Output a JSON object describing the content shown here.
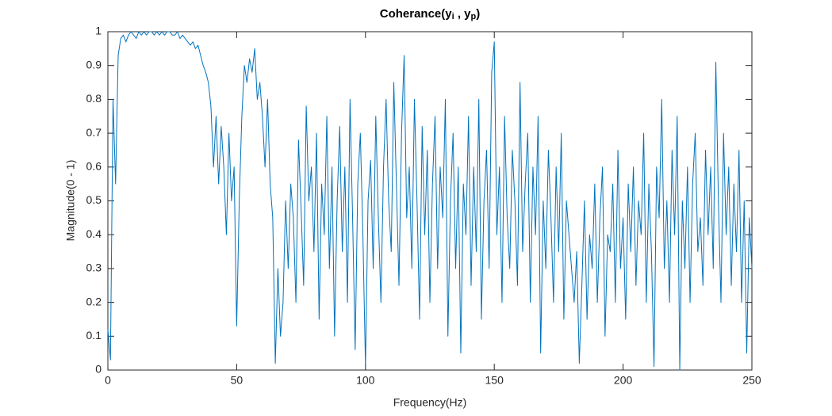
{
  "chart_data": {
    "type": "line",
    "title": [
      {
        "text": "Coherance(y"
      },
      {
        "text": "i",
        "sub": true
      },
      {
        "text": " , y"
      },
      {
        "text": "p",
        "sub": true
      },
      {
        "text": ")"
      }
    ],
    "x_label": "Frequency(Hz)",
    "y_label": "Magnitude(0 - 1)",
    "color": "#0072bd",
    "box": true,
    "xlim": [
      0,
      250
    ],
    "xticks": [
      0,
      50,
      100,
      150,
      200,
      250
    ],
    "ylim": [
      0,
      1
    ],
    "yticks": [
      0,
      0.1,
      0.2,
      0.3,
      0.4,
      0.5,
      0.6,
      0.7,
      0.8,
      0.9,
      1
    ],
    "x": [
      0,
      1,
      2,
      3,
      4,
      5,
      6,
      7,
      8,
      9,
      10,
      11,
      12,
      13,
      14,
      15,
      16,
      17,
      18,
      19,
      20,
      21,
      22,
      23,
      24,
      25,
      26,
      27,
      28,
      29,
      30,
      31,
      32,
      33,
      34,
      35,
      36,
      37,
      38,
      39,
      40,
      41,
      42,
      43,
      44,
      45,
      46,
      47,
      48,
      49,
      50,
      51,
      52,
      53,
      54,
      55,
      56,
      57,
      58,
      59,
      60,
      61,
      62,
      63,
      64,
      65,
      66,
      67,
      68,
      69,
      70,
      71,
      72,
      73,
      74,
      75,
      76,
      77,
      78,
      79,
      80,
      81,
      82,
      83,
      84,
      85,
      86,
      87,
      88,
      89,
      90,
      91,
      92,
      93,
      94,
      95,
      96,
      97,
      98,
      99,
      100,
      101,
      102,
      103,
      104,
      105,
      106,
      107,
      108,
      109,
      110,
      111,
      112,
      113,
      114,
      115,
      116,
      117,
      118,
      119,
      120,
      121,
      122,
      123,
      124,
      125,
      126,
      127,
      128,
      129,
      130,
      131,
      132,
      133,
      134,
      135,
      136,
      137,
      138,
      139,
      140,
      141,
      142,
      143,
      144,
      145,
      146,
      147,
      148,
      149,
      150,
      151,
      152,
      153,
      154,
      155,
      156,
      157,
      158,
      159,
      160,
      161,
      162,
      163,
      164,
      165,
      166,
      167,
      168,
      169,
      170,
      171,
      172,
      173,
      174,
      175,
      176,
      177,
      178,
      179,
      180,
      181,
      182,
      183,
      184,
      185,
      186,
      187,
      188,
      189,
      190,
      191,
      192,
      193,
      194,
      195,
      196,
      197,
      198,
      199,
      200,
      201,
      202,
      203,
      204,
      205,
      206,
      207,
      208,
      209,
      210,
      211,
      212,
      213,
      214,
      215,
      216,
      217,
      218,
      219,
      220,
      221,
      222,
      223,
      224,
      225,
      226,
      227,
      228,
      229,
      230,
      231,
      232,
      233,
      234,
      235,
      236,
      237,
      238,
      239,
      240,
      241,
      242,
      243,
      244,
      245,
      246,
      247,
      248,
      249,
      250
    ],
    "values": [
      0.12,
      0.03,
      0.8,
      0.55,
      0.93,
      0.98,
      0.99,
      0.97,
      0.99,
      1.0,
      0.99,
      0.98,
      1.0,
      0.99,
      1.0,
      0.99,
      1.0,
      1.0,
      0.99,
      1.0,
      0.99,
      1.0,
      0.99,
      1.0,
      1.0,
      0.99,
      0.99,
      1.0,
      0.98,
      0.99,
      0.98,
      0.97,
      0.96,
      0.97,
      0.95,
      0.96,
      0.93,
      0.9,
      0.88,
      0.85,
      0.78,
      0.6,
      0.75,
      0.55,
      0.72,
      0.6,
      0.4,
      0.7,
      0.5,
      0.6,
      0.13,
      0.5,
      0.75,
      0.9,
      0.85,
      0.92,
      0.88,
      0.95,
      0.8,
      0.85,
      0.75,
      0.6,
      0.8,
      0.55,
      0.45,
      0.02,
      0.3,
      0.1,
      0.2,
      0.5,
      0.3,
      0.55,
      0.45,
      0.2,
      0.68,
      0.48,
      0.25,
      0.78,
      0.5,
      0.6,
      0.35,
      0.7,
      0.15,
      0.55,
      0.4,
      0.75,
      0.3,
      0.6,
      0.1,
      0.5,
      0.72,
      0.35,
      0.6,
      0.2,
      0.8,
      0.45,
      0.06,
      0.55,
      0.7,
      0.4,
      0.01,
      0.5,
      0.62,
      0.3,
      0.75,
      0.45,
      0.2,
      0.6,
      0.8,
      0.5,
      0.35,
      0.85,
      0.55,
      0.25,
      0.7,
      0.93,
      0.45,
      0.6,
      0.3,
      0.8,
      0.5,
      0.15,
      0.72,
      0.4,
      0.65,
      0.2,
      0.55,
      0.75,
      0.3,
      0.6,
      0.45,
      0.8,
      0.1,
      0.5,
      0.7,
      0.3,
      0.6,
      0.05,
      0.55,
      0.4,
      0.75,
      0.25,
      0.6,
      0.35,
      0.8,
      0.15,
      0.5,
      0.65,
      0.3,
      0.88,
      0.97,
      0.4,
      0.6,
      0.2,
      0.75,
      0.45,
      0.3,
      0.65,
      0.5,
      0.25,
      0.85,
      0.35,
      0.55,
      0.7,
      0.2,
      0.6,
      0.4,
      0.75,
      0.05,
      0.5,
      0.3,
      0.65,
      0.45,
      0.2,
      0.6,
      0.35,
      0.7,
      0.15,
      0.5,
      0.4,
      0.3,
      0.2,
      0.35,
      0.02,
      0.25,
      0.5,
      0.15,
      0.4,
      0.3,
      0.55,
      0.2,
      0.45,
      0.6,
      0.1,
      0.4,
      0.35,
      0.55,
      0.2,
      0.65,
      0.3,
      0.45,
      0.15,
      0.55,
      0.35,
      0.6,
      0.25,
      0.5,
      0.4,
      0.7,
      0.2,
      0.55,
      0.35,
      0.01,
      0.6,
      0.45,
      0.8,
      0.3,
      0.5,
      0.2,
      0.65,
      0.4,
      0.75,
      0.0,
      0.5,
      0.3,
      0.6,
      0.2,
      0.55,
      0.7,
      0.35,
      0.45,
      0.25,
      0.65,
      0.4,
      0.6,
      0.3,
      0.91,
      0.5,
      0.2,
      0.7,
      0.4,
      0.6,
      0.25,
      0.55,
      0.35,
      0.65,
      0.2,
      0.5,
      0.05,
      0.45,
      0.3
    ]
  }
}
